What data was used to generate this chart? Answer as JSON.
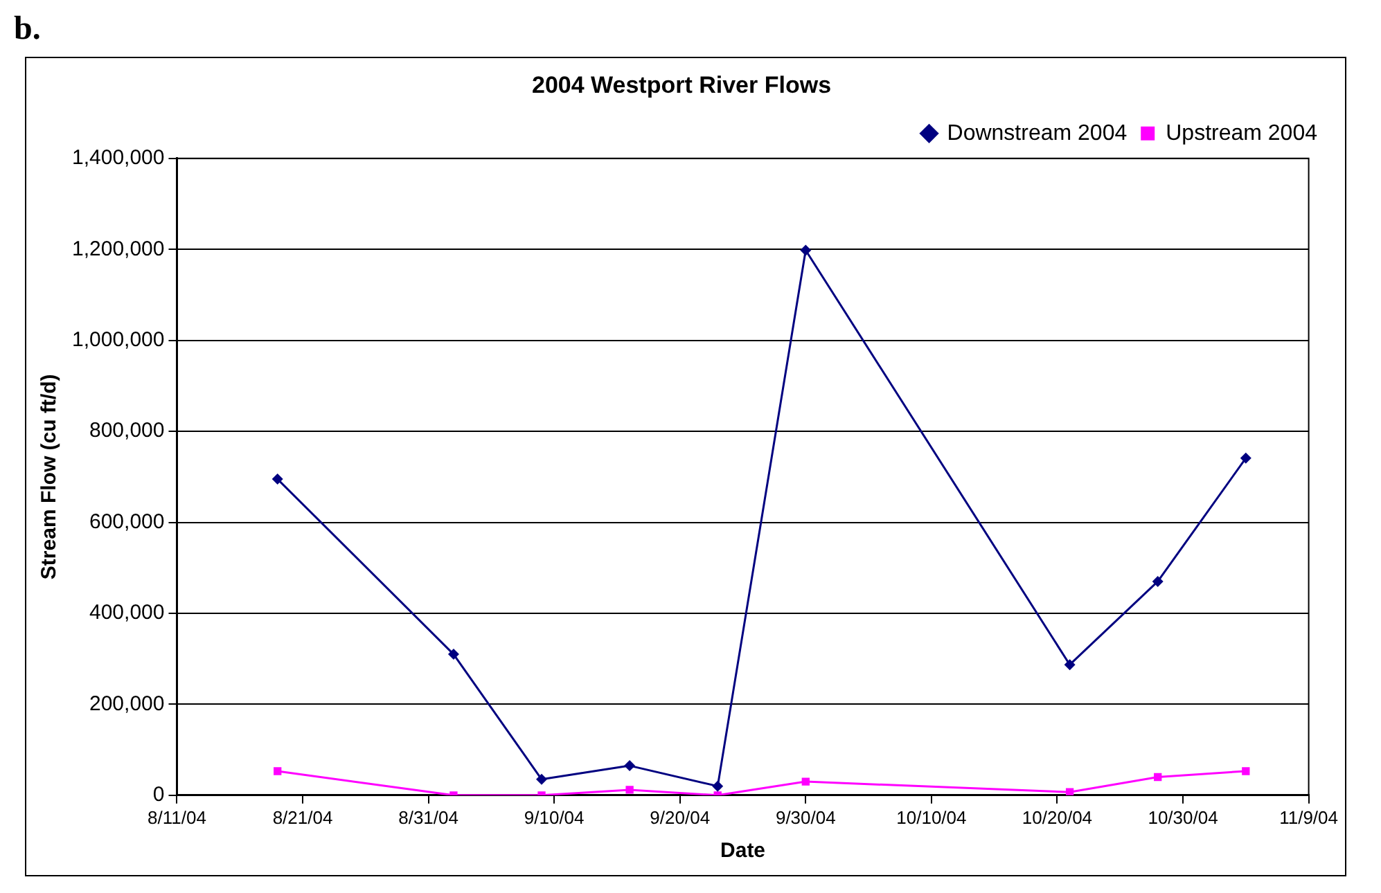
{
  "chart_data": {
    "type": "line",
    "title": "2004 Westport River Flows",
    "xlabel": "Date",
    "ylabel": "Stream Flow (cu ft/d)",
    "annotations": [
      "b."
    ],
    "x": [
      "2004-08-19",
      "2004-09-02",
      "2004-09-09",
      "2004-09-16",
      "2004-09-23",
      "2004-09-30",
      "2004-10-21",
      "2004-10-28",
      "2004-11-04"
    ],
    "series": [
      {
        "name": "Downstream 2004",
        "color": "#000080",
        "marker": "diamond",
        "values": [
          695000,
          310000,
          35000,
          65000,
          20000,
          1198000,
          287000,
          470000,
          741000
        ]
      },
      {
        "name": "Upstream 2004",
        "color": "#ff00ff",
        "marker": "square",
        "values": [
          53000,
          0,
          0,
          12000,
          0,
          30000,
          7000,
          40000,
          53000
        ]
      }
    ],
    "xlim": [
      "2004-08-11",
      "2004-11-09"
    ],
    "xticks": [
      {
        "value": "2004-08-11",
        "label": "8/11/04"
      },
      {
        "value": "2004-08-21",
        "label": "8/21/04"
      },
      {
        "value": "2004-08-31",
        "label": "8/31/04"
      },
      {
        "value": "2004-09-10",
        "label": "9/10/04"
      },
      {
        "value": "2004-09-20",
        "label": "9/20/04"
      },
      {
        "value": "2004-09-30",
        "label": "9/30/04"
      },
      {
        "value": "2004-10-10",
        "label": "10/10/04"
      },
      {
        "value": "2004-10-20",
        "label": "10/20/04"
      },
      {
        "value": "2004-10-30",
        "label": "10/30/04"
      },
      {
        "value": "2004-11-09",
        "label": "11/9/04"
      }
    ],
    "ylim": [
      0,
      1400000
    ],
    "yticks": [
      {
        "value": 0,
        "label": "0"
      },
      {
        "value": 200000,
        "label": "200,000"
      },
      {
        "value": 400000,
        "label": "400,000"
      },
      {
        "value": 600000,
        "label": "600,000"
      },
      {
        "value": 800000,
        "label": "800,000"
      },
      {
        "value": 1000000,
        "label": "1,000,000"
      },
      {
        "value": 1200000,
        "label": "1,200,000"
      },
      {
        "value": 1400000,
        "label": "1,400,000"
      }
    ],
    "grid": "y",
    "legend": "top right",
    "line_style": "solid"
  }
}
